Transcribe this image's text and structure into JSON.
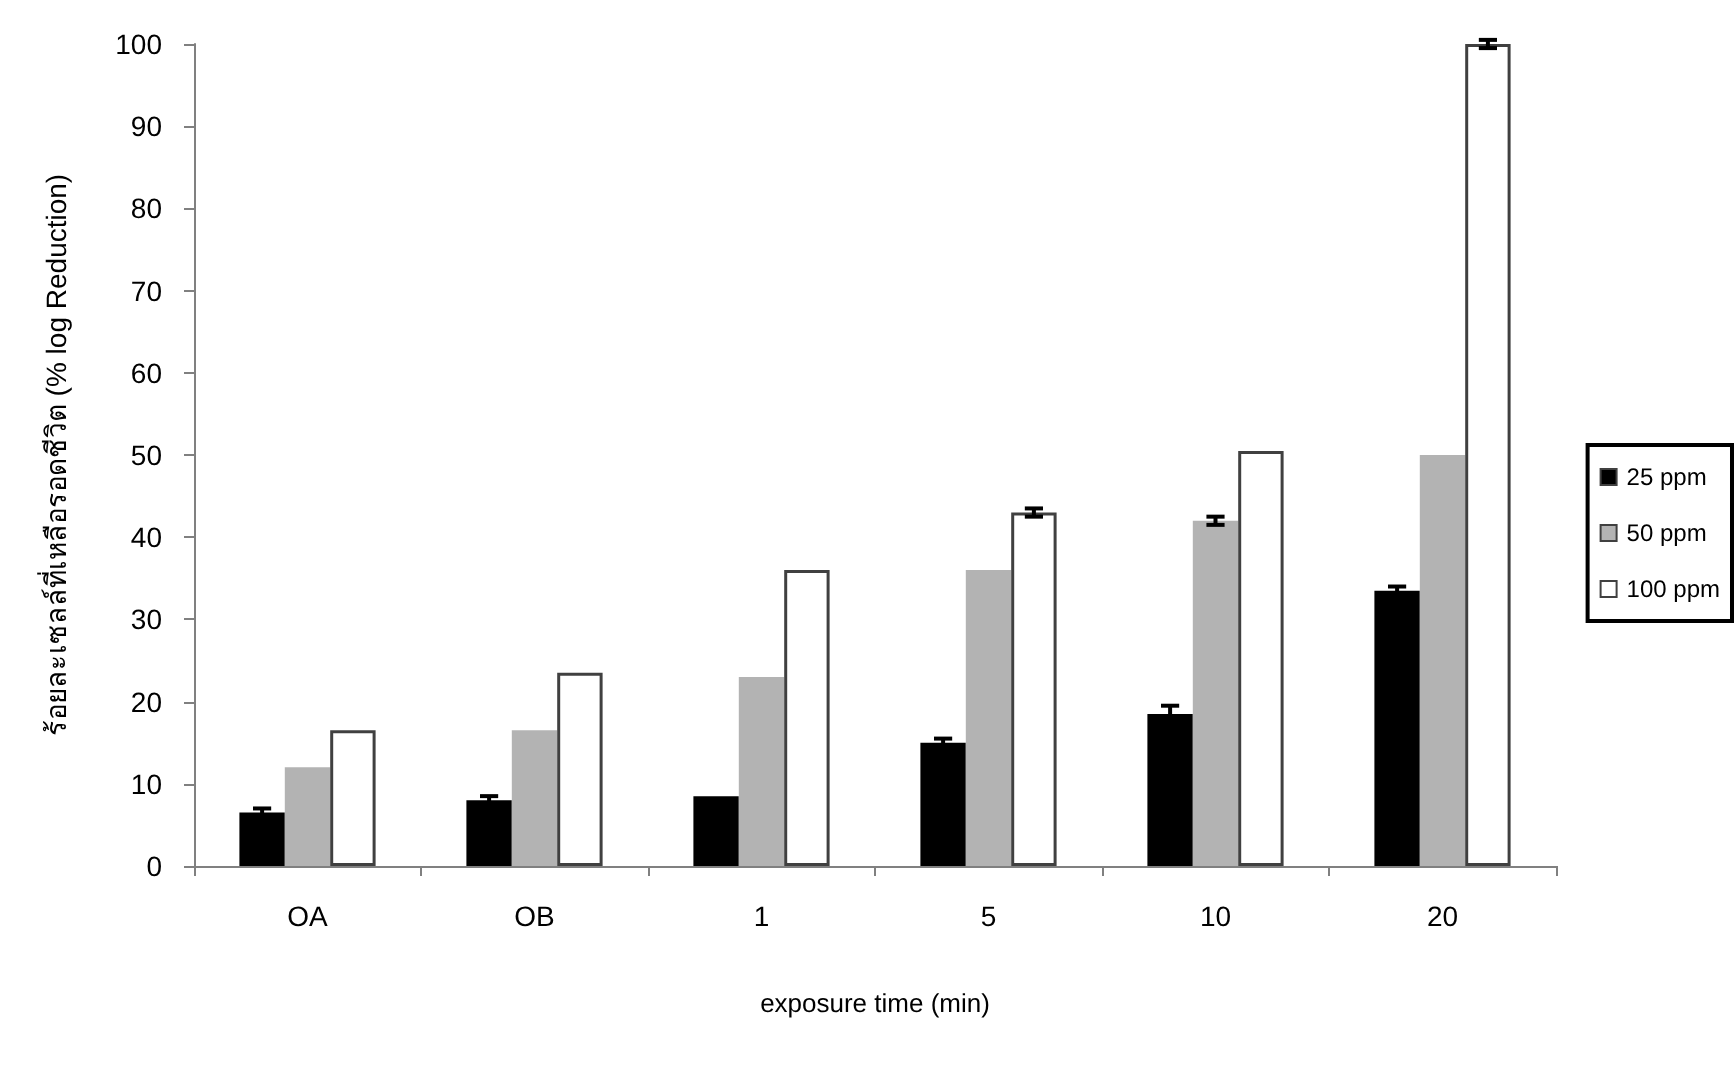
{
  "chart_data": {
    "type": "bar",
    "xlabel": "exposure time (min)",
    "ylabel": "ร้อยละเซลล์ที่เหลือรอดชีวิต (% log Reduction)",
    "categories": [
      "OA",
      "OB",
      "1",
      "5",
      "10",
      "20"
    ],
    "series": [
      {
        "name": "25 ppm",
        "color": "#000000",
        "values": [
          6.5,
          8,
          8.5,
          15,
          18.5,
          33.5
        ],
        "errors": [
          0.5,
          0.5,
          null,
          0.5,
          1,
          0.5
        ]
      },
      {
        "name": "50 ppm",
        "color": "#b3b3b3",
        "values": [
          12,
          16.5,
          23,
          36,
          42,
          50
        ],
        "errors": [
          null,
          null,
          null,
          null,
          0.5,
          null
        ]
      },
      {
        "name": "100 ppm",
        "color": "#ffffff",
        "values": [
          16.5,
          23.5,
          36,
          43,
          50.5,
          100
        ],
        "errors": [
          null,
          null,
          null,
          0.5,
          null,
          0.5
        ]
      }
    ],
    "ylim": [
      0,
      100
    ],
    "yticks": [
      0,
      10,
      20,
      30,
      40,
      50,
      60,
      70,
      80,
      90,
      100
    ],
    "grid": false,
    "legend": "right"
  }
}
